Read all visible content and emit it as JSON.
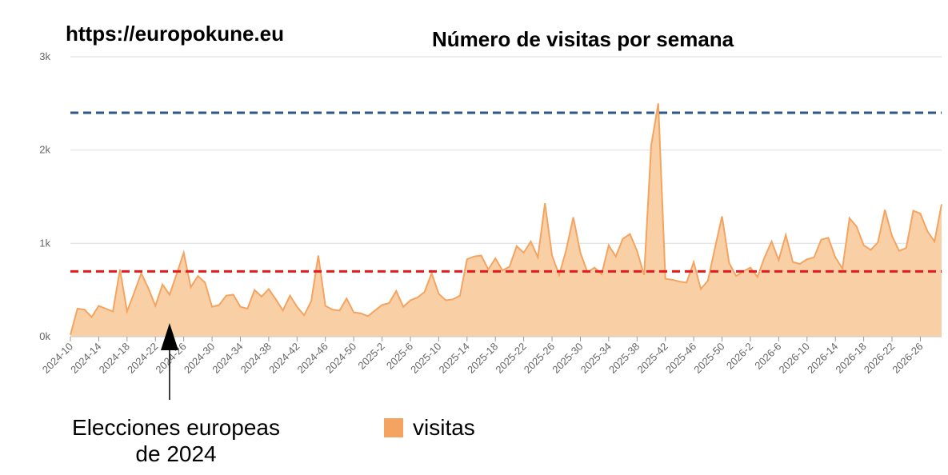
{
  "site_label": "https://europokune.eu",
  "annotation": {
    "line1": "Elecciones europeas",
    "line2": "de 2024"
  },
  "legend_label": "visitas",
  "colors": {
    "fill": "#f9cfa6",
    "line": "#f4a460",
    "legend": "#f4a460",
    "red_ref": "#e41a1c",
    "blue_ref": "#2b5a8a",
    "grid": "#e6e6e6"
  },
  "chart_data": {
    "type": "area",
    "title": "Número de visitas por semana",
    "xlabel": "",
    "ylabel": "",
    "ylim": [
      0,
      3000
    ],
    "grid": true,
    "y_ticks": [
      0,
      1000,
      2000,
      3000
    ],
    "y_tick_labels": [
      "0k",
      "1k",
      "2k",
      "3k"
    ],
    "x_tick_labels": [
      "2024-10",
      "2024-14",
      "2024-18",
      "2024-22",
      "2024-26",
      "2024-30",
      "2024-34",
      "2024-38",
      "2024-42",
      "2024-46",
      "2024-50",
      "2025-2",
      "2025-6",
      "2025-10",
      "2025-14",
      "2025-18",
      "2025-22",
      "2025-26",
      "2025-30",
      "2025-34",
      "2025-38",
      "2025-42",
      "2025-46",
      "2025-50",
      "2026-2",
      "2026-6",
      "2026-10",
      "2026-14",
      "2026-18",
      "2026-22",
      "2026-26"
    ],
    "x_ticks": [
      "2024-10",
      "2024-14",
      "2024-18",
      "2024-22",
      "2024-26",
      "2024-30",
      "2024-34",
      "2024-38",
      "2024-42",
      "2024-46",
      "2024-50",
      "2025-2",
      "2025-6",
      "2025-10",
      "2025-14",
      "2025-18",
      "2025-22",
      "2025-26",
      "2025-30",
      "2025-34",
      "2025-38",
      "2025-42",
      "2025-46",
      "2025-50",
      "2026-2",
      "2026-6",
      "2026-10",
      "2026-14",
      "2026-18",
      "2026-22",
      "2026-26"
    ],
    "x": [
      "2024-10",
      "2024-11",
      "2024-12",
      "2024-13",
      "2024-14",
      "2024-15",
      "2024-16",
      "2024-17",
      "2024-18",
      "2024-19",
      "2024-20",
      "2024-21",
      "2024-22",
      "2024-23",
      "2024-24",
      "2024-25",
      "2024-26",
      "2024-27",
      "2024-28",
      "2024-29",
      "2024-30",
      "2024-31",
      "2024-32",
      "2024-33",
      "2024-34",
      "2024-35",
      "2024-36",
      "2024-37",
      "2024-38",
      "2024-39",
      "2024-40",
      "2024-41",
      "2024-42",
      "2024-43",
      "2024-44",
      "2024-45",
      "2024-46",
      "2024-47",
      "2024-48",
      "2024-49",
      "2024-50",
      "2024-51",
      "2024-52",
      "2025-1",
      "2025-2",
      "2025-3",
      "2025-4",
      "2025-5",
      "2025-6",
      "2025-7",
      "2025-8",
      "2025-9",
      "2025-10",
      "2025-11",
      "2025-12",
      "2025-13",
      "2025-14",
      "2025-15",
      "2025-16",
      "2025-17",
      "2025-18",
      "2025-19",
      "2025-20",
      "2025-21",
      "2025-22",
      "2025-23",
      "2025-24",
      "2025-25",
      "2025-26",
      "2025-27",
      "2025-28",
      "2025-29",
      "2025-30",
      "2025-31",
      "2025-32",
      "2025-33",
      "2025-34",
      "2025-35",
      "2025-36",
      "2025-37",
      "2025-38",
      "2025-39",
      "2025-40",
      "2025-41",
      "2025-42",
      "2025-43",
      "2025-44",
      "2025-45",
      "2025-46",
      "2025-47",
      "2025-48",
      "2025-49",
      "2025-50",
      "2025-51",
      "2025-52",
      "2026-1",
      "2026-2",
      "2026-3",
      "2026-4",
      "2026-5",
      "2026-6",
      "2026-7",
      "2026-8",
      "2026-9",
      "2026-10",
      "2026-11",
      "2026-12",
      "2026-13",
      "2026-14",
      "2026-15",
      "2026-16",
      "2026-17",
      "2026-18",
      "2026-19",
      "2026-20",
      "2026-21",
      "2026-22",
      "2026-23",
      "2026-24",
      "2026-25",
      "2026-26",
      "2026-27",
      "2026-28",
      "2026-29"
    ],
    "series": [
      {
        "name": "visitas",
        "values": [
          20,
          300,
          290,
          210,
          330,
          300,
          270,
          720,
          270,
          470,
          680,
          520,
          330,
          560,
          450,
          670,
          900,
          530,
          650,
          580,
          320,
          340,
          440,
          450,
          320,
          300,
          500,
          430,
          510,
          400,
          280,
          440,
          320,
          230,
          380,
          870,
          330,
          290,
          280,
          410,
          260,
          250,
          220,
          280,
          340,
          360,
          490,
          320,
          390,
          420,
          480,
          680,
          460,
          390,
          400,
          440,
          830,
          860,
          870,
          720,
          840,
          710,
          750,
          970,
          900,
          1020,
          850,
          1430,
          870,
          660,
          930,
          1280,
          900,
          690,
          740,
          670,
          980,
          860,
          1050,
          1100,
          920,
          660,
          2050,
          2500,
          620,
          610,
          590,
          580,
          800,
          510,
          600,
          950,
          1290,
          790,
          650,
          700,
          740,
          640,
          850,
          1020,
          820,
          1090,
          800,
          780,
          830,
          850,
          1040,
          1060,
          850,
          730,
          1270,
          1180,
          980,
          930,
          1010,
          1360,
          1080,
          920,
          950,
          1350,
          1320,
          1130,
          1020,
          1420
        ]
      }
    ],
    "reference_lines": [
      {
        "value": 700,
        "color": "red",
        "style": "dashed"
      },
      {
        "value": 2400,
        "color": "blue",
        "style": "dashed"
      }
    ],
    "annotation_marker": {
      "x": "2024-24"
    },
    "legend_position": "bottom"
  }
}
